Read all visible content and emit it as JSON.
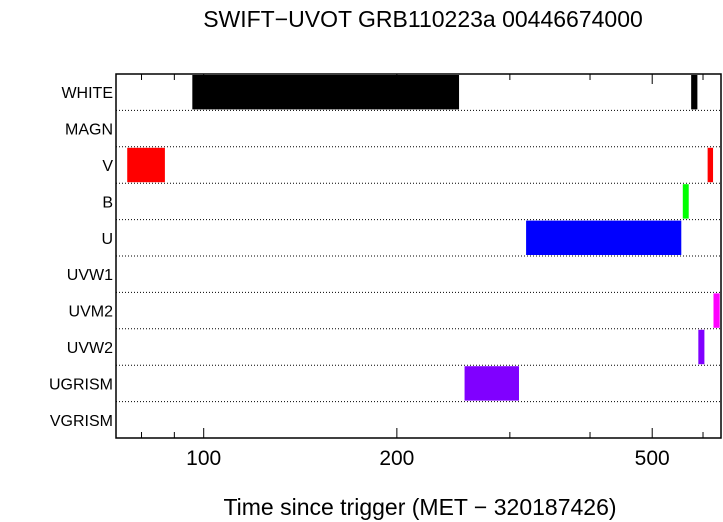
{
  "chart_data": {
    "type": "bar",
    "orientation": "horizontal-intervals",
    "title": "SWIFT−UVOT GRB110223a 00446674000",
    "xlabel": "Time since trigger (MET − 320187426)",
    "x_scale": "log",
    "xlim": [
      73,
      640
    ],
    "x_ticks": [
      100,
      200,
      500
    ],
    "x_tick_labels": [
      "100",
      "200",
      "500"
    ],
    "categories": [
      "WHITE",
      "MAGN",
      "V",
      "B",
      "U",
      "UVW1",
      "UVM2",
      "UVW2",
      "UGRISM",
      "VGRISM"
    ],
    "grid": "dotted horizontal separators",
    "series": [
      {
        "filter": "WHITE",
        "color": "#000000",
        "intervals": [
          [
            96,
            250
          ],
          [
            575,
            588
          ]
        ]
      },
      {
        "filter": "MAGN",
        "color": "#000000",
        "intervals": []
      },
      {
        "filter": "V",
        "color": "#ff0000",
        "intervals": [
          [
            76,
            87
          ],
          [
            610,
            622
          ]
        ]
      },
      {
        "filter": "B",
        "color": "#00ff00",
        "intervals": [
          [
            558,
            570
          ]
        ]
      },
      {
        "filter": "U",
        "color": "#0000ff",
        "intervals": [
          [
            318,
            555
          ]
        ]
      },
      {
        "filter": "UVW1",
        "color": "#000000",
        "intervals": []
      },
      {
        "filter": "UVM2",
        "color": "#ff00ff",
        "intervals": [
          [
            623,
            637
          ]
        ]
      },
      {
        "filter": "UVW2",
        "color": "#8000ff",
        "intervals": [
          [
            590,
            603
          ]
        ]
      },
      {
        "filter": "UGRISM",
        "color": "#8000ff",
        "intervals": [
          [
            255,
            310
          ]
        ]
      },
      {
        "filter": "VGRISM",
        "color": "#000000",
        "intervals": []
      }
    ]
  }
}
